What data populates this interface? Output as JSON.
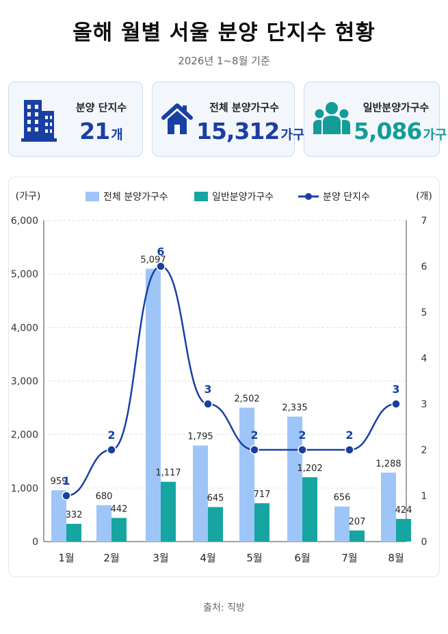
{
  "header": {
    "title": "올해 월별 서울 분양 단지수 현황",
    "subtitle": "2026년 1~8월 기준"
  },
  "cards": [
    {
      "icon": "building-icon",
      "label": "분양 단지수",
      "value": "21",
      "unit": "개",
      "color": "#1a3fa3"
    },
    {
      "icon": "house-icon",
      "label": "전체 분양가구수",
      "value": "15,312",
      "unit": "가구",
      "color": "#1a3fa3"
    },
    {
      "icon": "people-icon",
      "label": "일반분양가구수",
      "value": "5,086",
      "unit": "가구",
      "color": "#139c98"
    }
  ],
  "source": "출처: 직방",
  "chart_data": {
    "type": "bar",
    "categories": [
      "1월",
      "2월",
      "3월",
      "4월",
      "5월",
      "6월",
      "7월",
      "8월"
    ],
    "series": [
      {
        "name": "전체 분양가구수",
        "type": "bar",
        "axis": "left",
        "color": "#9ec5f8",
        "values": [
          959,
          680,
          5097,
          1795,
          2502,
          2335,
          656,
          1288
        ]
      },
      {
        "name": "일반분양가구수",
        "type": "bar",
        "axis": "left",
        "color": "#16a5a1",
        "values": [
          332,
          442,
          1117,
          645,
          717,
          1202,
          207,
          424
        ]
      },
      {
        "name": "분양 단지수",
        "type": "line",
        "axis": "right",
        "color": "#1a3fa3",
        "values": [
          1,
          2,
          6,
          3,
          2,
          2,
          2,
          3
        ]
      }
    ],
    "ylabel": "(가구)",
    "y2label": "(개)",
    "ylim": [
      0,
      6000
    ],
    "y2lim": [
      0,
      7
    ],
    "yticks": [
      "0",
      "1,000",
      "2,000",
      "3,000",
      "4,000",
      "5,000",
      "6,000"
    ],
    "y2ticks": [
      "0",
      "1",
      "2",
      "3",
      "4",
      "5",
      "6",
      "7"
    ],
    "grid": true,
    "legend": "top"
  }
}
